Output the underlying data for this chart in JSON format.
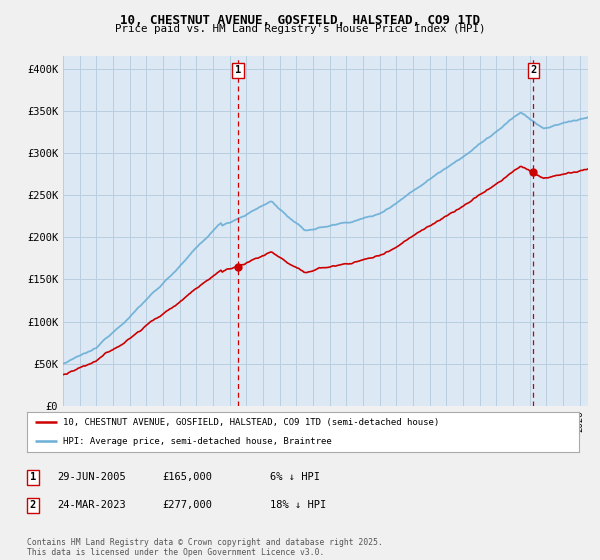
{
  "title": "10, CHESTNUT AVENUE, GOSFIELD, HALSTEAD, CO9 1TD",
  "subtitle": "Price paid vs. HM Land Registry's House Price Index (HPI)",
  "ylabel_ticks": [
    "£0",
    "£50K",
    "£100K",
    "£150K",
    "£200K",
    "£250K",
    "£300K",
    "£350K",
    "£400K"
  ],
  "ytick_vals": [
    0,
    50000,
    100000,
    150000,
    200000,
    250000,
    300000,
    350000,
    400000
  ],
  "ylim": [
    0,
    415000
  ],
  "xlim_start": 1995.0,
  "xlim_end": 2026.5,
  "hpi_color": "#6baed6",
  "price_color": "#cc0000",
  "sale1_x": 2005.49,
  "sale1_y": 165000,
  "sale2_x": 2023.23,
  "sale2_y": 277000,
  "legend_line1": "10, CHESTNUT AVENUE, GOSFIELD, HALSTEAD, CO9 1TD (semi-detached house)",
  "legend_line2": "HPI: Average price, semi-detached house, Braintree",
  "sale1_date": "29-JUN-2005",
  "sale1_price": "£165,000",
  "sale1_pct": "6% ↓ HPI",
  "sale2_date": "24-MAR-2023",
  "sale2_price": "£277,000",
  "sale2_pct": "18% ↓ HPI",
  "footer": "Contains HM Land Registry data © Crown copyright and database right 2025.\nThis data is licensed under the Open Government Licence v3.0.",
  "plot_bg_color": "#dce9f5",
  "grid_color": "#b8cfe0",
  "fig_bg_color": "#f0f0f0"
}
